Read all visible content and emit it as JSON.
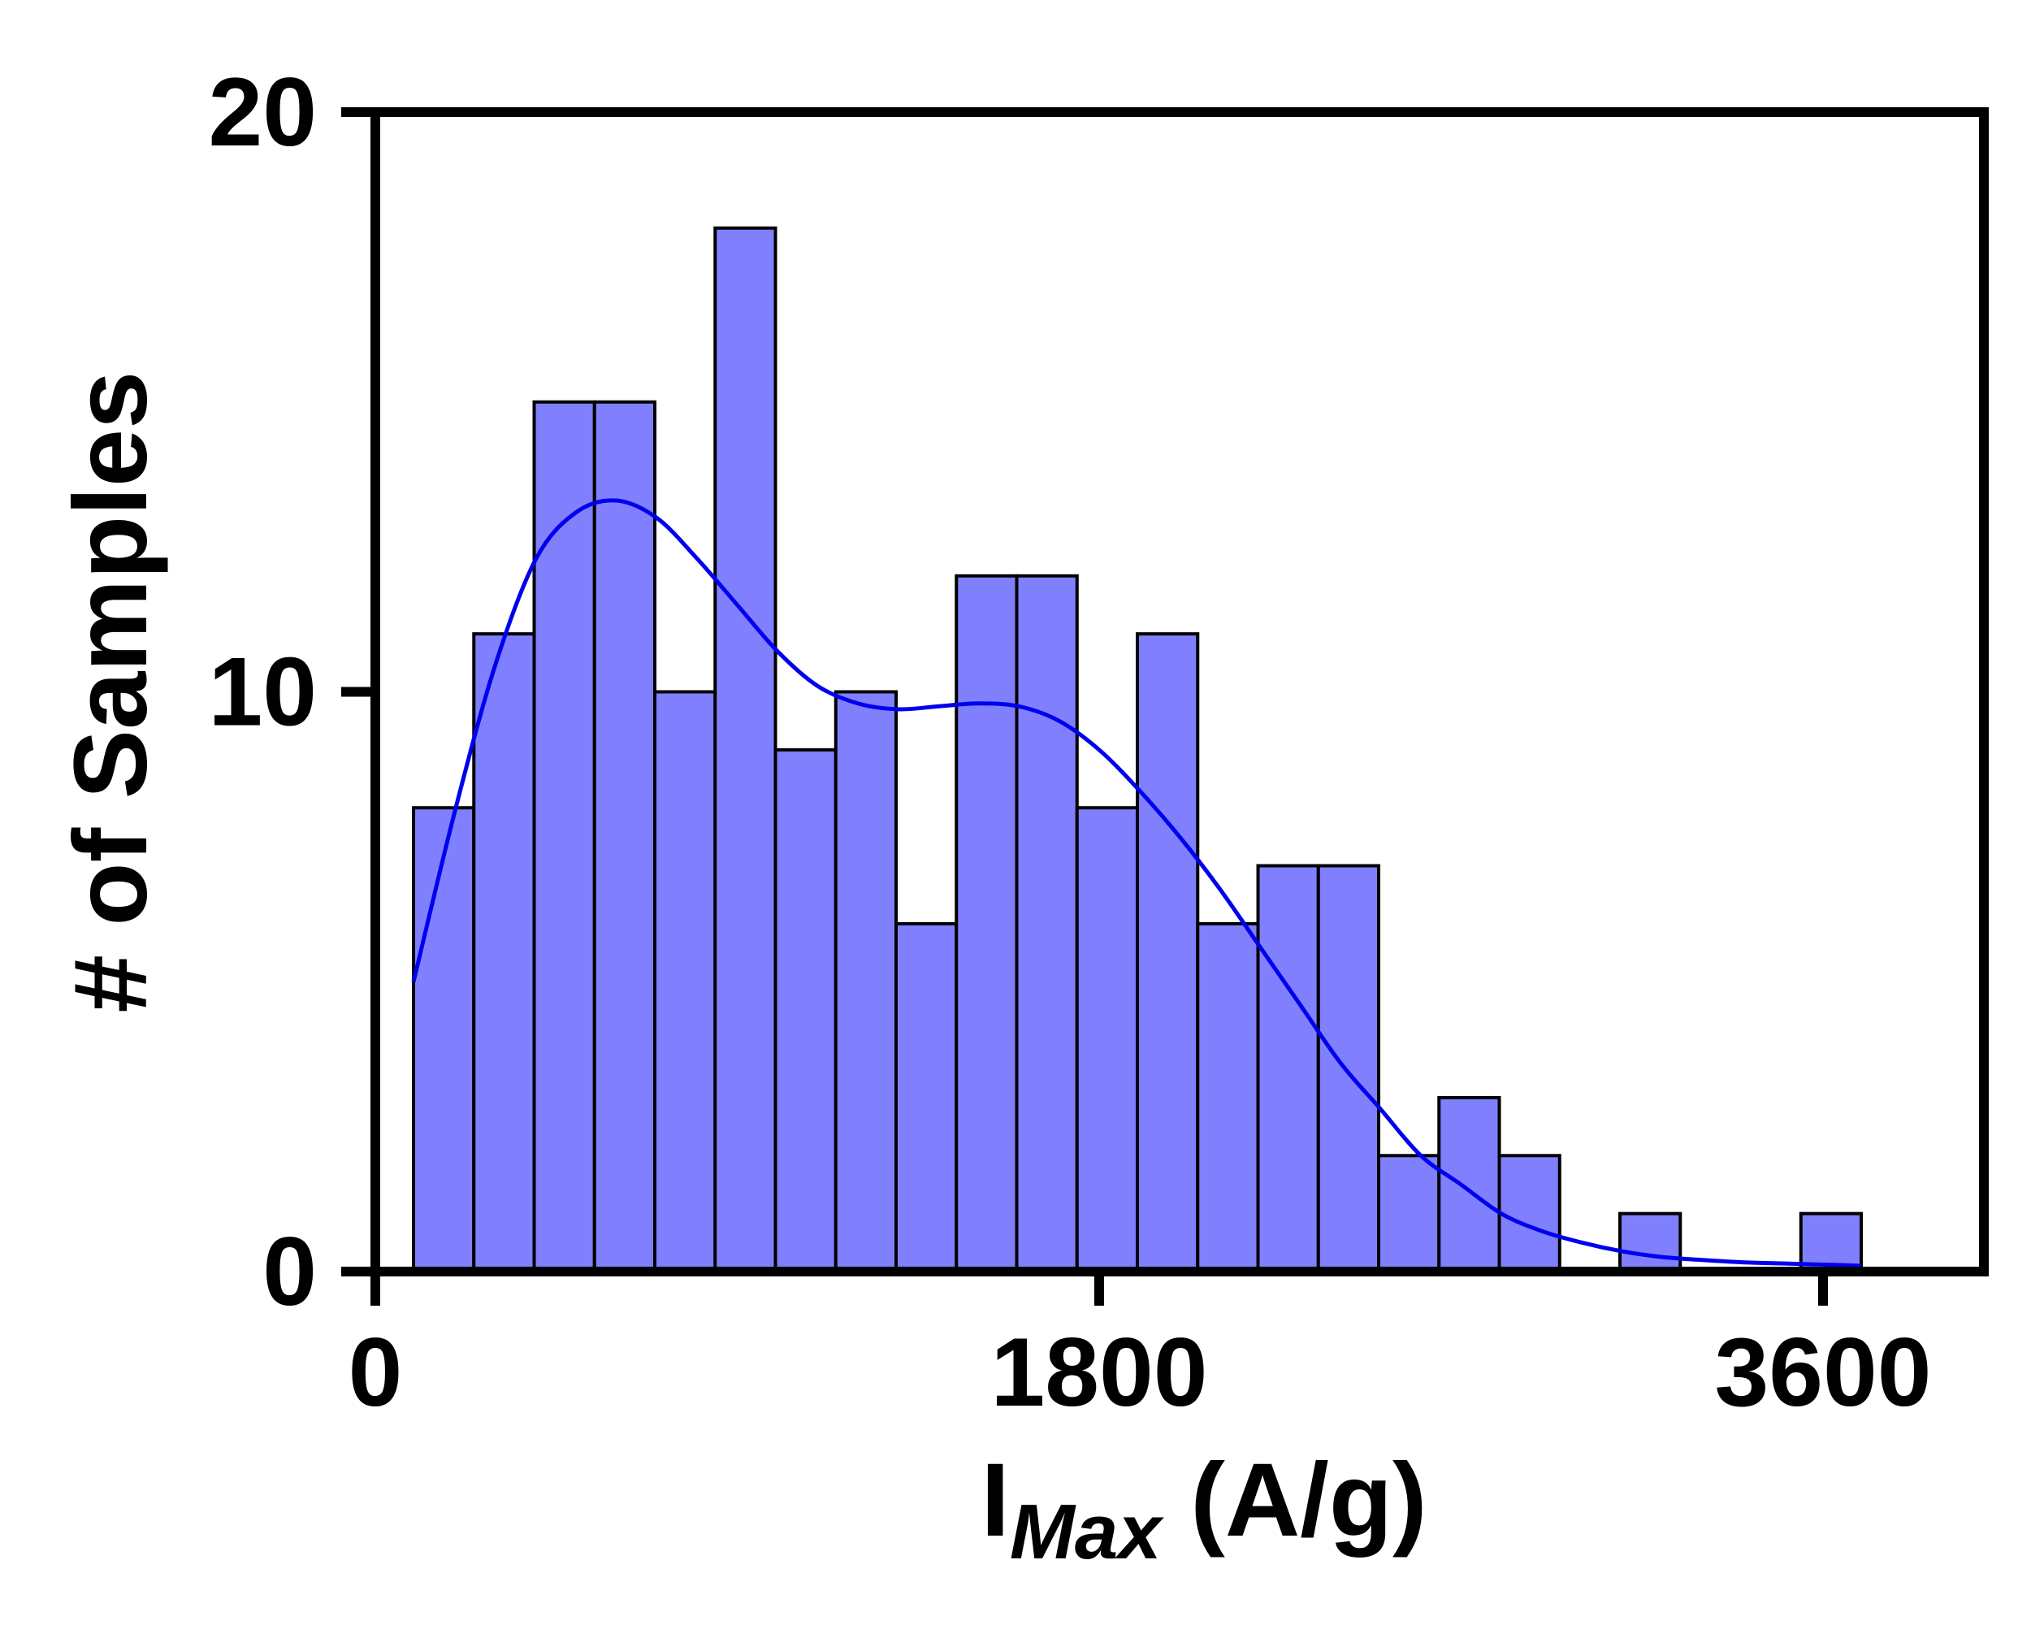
{
  "chart_data": {
    "type": "bar",
    "subtype": "histogram",
    "xlabel_main": "I",
    "xlabel_sub": "Max",
    "xlabel_unit": " (A/g)",
    "ylabel": "# of Samples",
    "xlim": [
      0,
      4000
    ],
    "ylim": [
      0,
      20
    ],
    "xticks": [
      {
        "value": 0,
        "label": "0"
      },
      {
        "value": 1800,
        "label": "1800"
      },
      {
        "value": 3600,
        "label": "3600"
      }
    ],
    "yticks": [
      {
        "value": 0,
        "label": "0"
      },
      {
        "value": 10,
        "label": "10"
      },
      {
        "value": 20,
        "label": "20"
      }
    ],
    "bin_edges": [
      95,
      245,
      395,
      545,
      695,
      845,
      995,
      1145,
      1295,
      1445,
      1595,
      1745,
      1895,
      2045,
      2195,
      2345,
      2495,
      2645,
      2795,
      2945,
      3095,
      3245,
      3395,
      3545,
      3695
    ],
    "counts": [
      8,
      11,
      15,
      15,
      10,
      18,
      9,
      10,
      6,
      12,
      12,
      8,
      11,
      6,
      7,
      7,
      2,
      3,
      2,
      0,
      1,
      0,
      0,
      1
    ],
    "kde": {
      "x": [
        95,
        200,
        300,
        400,
        500,
        600,
        700,
        800,
        900,
        1000,
        1100,
        1200,
        1300,
        1400,
        1500,
        1600,
        1700,
        1800,
        1900,
        2000,
        2100,
        2200,
        2300,
        2400,
        2500,
        2600,
        2700,
        2800,
        2900,
        3000,
        3100,
        3200,
        3300,
        3400,
        3500,
        3600,
        3695
      ],
      "y": [
        5.0,
        8.0,
        10.5,
        12.3,
        13.1,
        13.3,
        13.0,
        12.3,
        11.5,
        10.7,
        10.1,
        9.8,
        9.7,
        9.75,
        9.8,
        9.75,
        9.5,
        9.0,
        8.3,
        7.5,
        6.6,
        5.6,
        4.6,
        3.6,
        2.8,
        2.0,
        1.5,
        1.0,
        0.7,
        0.5,
        0.35,
        0.25,
        0.2,
        0.16,
        0.14,
        0.12,
        0.1
      ]
    },
    "grid": false,
    "legend": "none",
    "colors": {
      "bar_fill": "#8080ff",
      "bar_edge": "#000000",
      "kde_line": "#0000ee",
      "axes": "#000000"
    }
  }
}
